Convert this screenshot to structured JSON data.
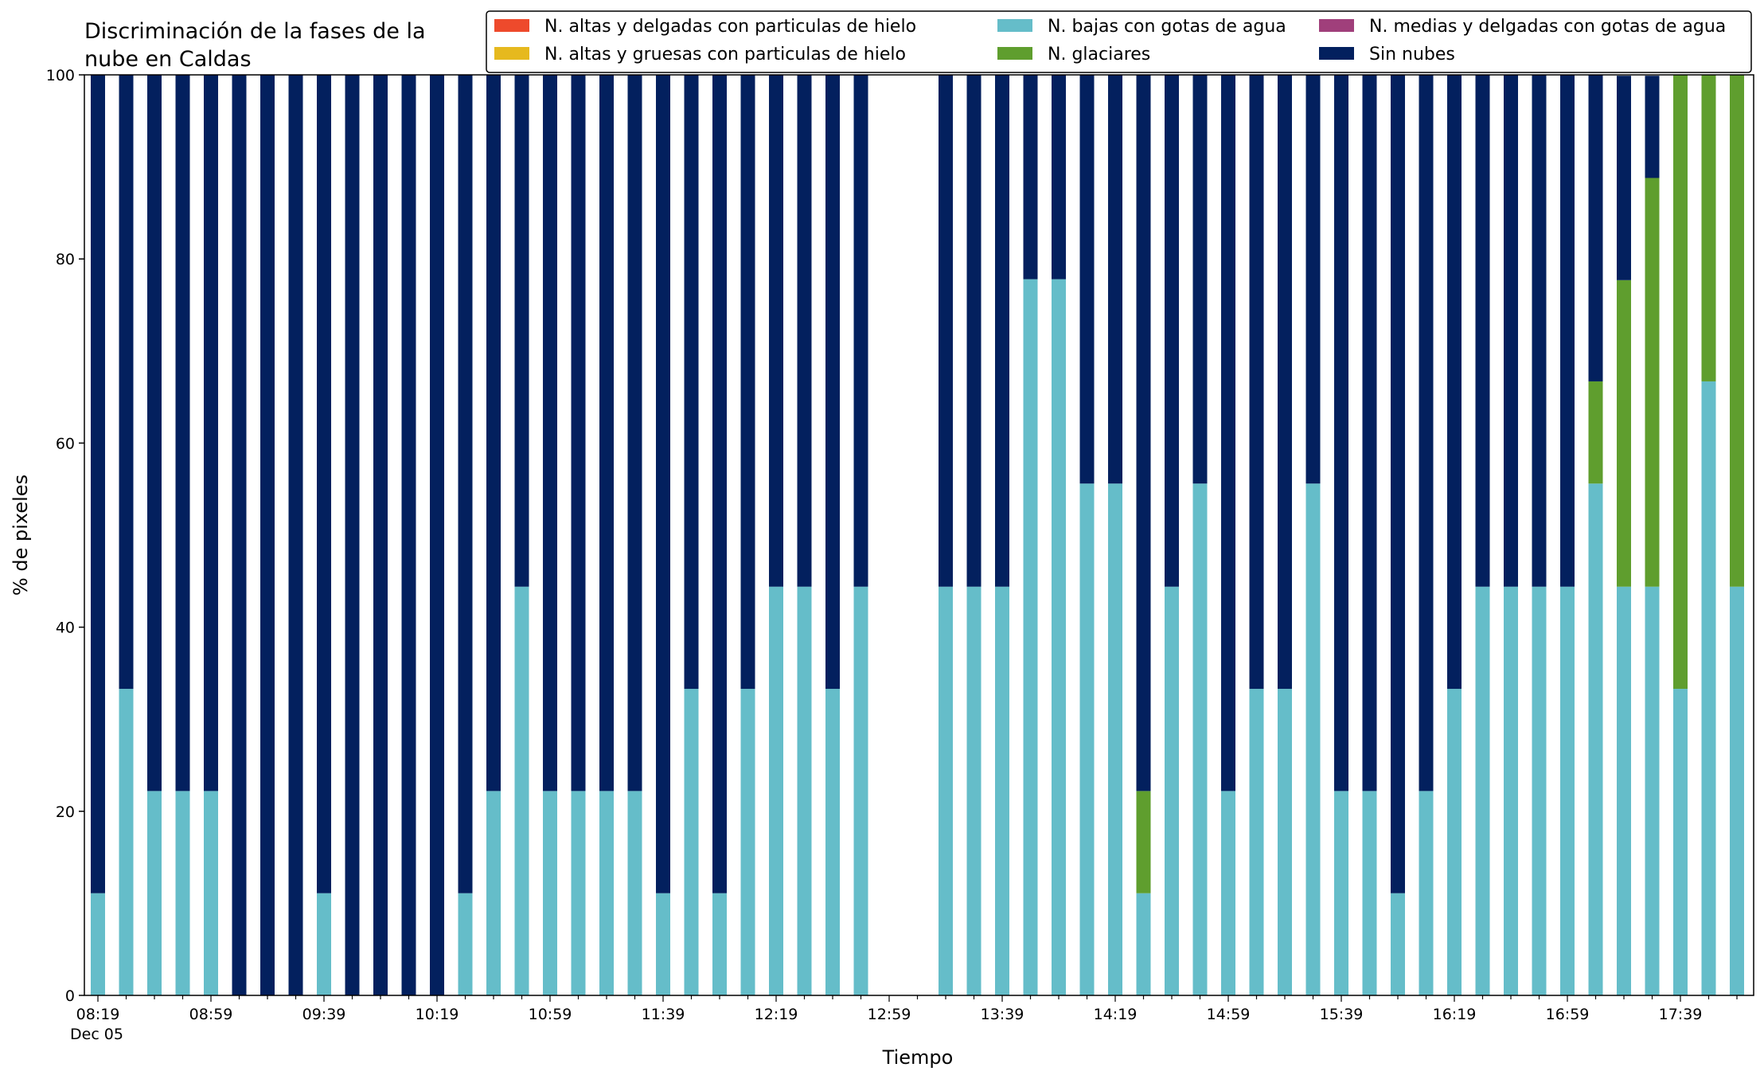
{
  "chart_data": {
    "type": "bar",
    "stacked": true,
    "title": "Discriminación de la fases de la nube en Caldas",
    "title_lines": [
      "Discriminación de la fases de la",
      "nube en Caldas"
    ],
    "xlabel": "Tiempo",
    "ylabel": "% de pixeles",
    "ylim": [
      0,
      100
    ],
    "yticks": [
      0,
      20,
      40,
      60,
      80,
      100
    ],
    "date_label": "Dec 05",
    "grid": false,
    "legend_position": "top-right",
    "categories": [
      "08:19",
      "08:29",
      "08:39",
      "08:49",
      "08:59",
      "09:09",
      "09:19",
      "09:29",
      "09:39",
      "09:49",
      "09:59",
      "10:09",
      "10:19",
      "10:29",
      "10:39",
      "10:49",
      "10:59",
      "11:09",
      "11:19",
      "11:29",
      "11:39",
      "11:49",
      "11:59",
      "12:09",
      "12:19",
      "12:29",
      "12:39",
      "12:49",
      "12:59",
      "13:09",
      "13:19",
      "13:29",
      "13:39",
      "13:49",
      "13:59",
      "14:09",
      "14:19",
      "14:29",
      "14:39",
      "14:49",
      "14:59",
      "15:09",
      "15:19",
      "15:29",
      "15:39",
      "15:49",
      "15:59",
      "16:09",
      "16:19",
      "16:29",
      "16:39",
      "16:49",
      "16:59",
      "17:09",
      "17:19",
      "17:29",
      "17:39",
      "17:49",
      "17:59"
    ],
    "x_tick_labels": [
      "08:19",
      "08:59",
      "09:39",
      "10:19",
      "10:59",
      "11:39",
      "12:19",
      "12:59",
      "13:39",
      "14:19",
      "14:59",
      "15:39",
      "16:19",
      "16:59",
      "17:39"
    ],
    "legend": [
      {
        "name": "N. altas y delgadas con particulas de hielo",
        "color": "#ee4a2c"
      },
      {
        "name": "N. altas y gruesas con particulas de hielo",
        "color": "#e6b91e"
      },
      {
        "name": "N. bajas con gotas de agua",
        "color": "#65bdc9"
      },
      {
        "name": "N. glaciares",
        "color": "#5f9e2e"
      },
      {
        "name": "N. medias y delgadas con gotas de agua",
        "color": "#a03f7b"
      },
      {
        "name": "Sin nubes",
        "color": "#03205e"
      }
    ],
    "series": [
      {
        "name": "N. altas y delgadas con particulas de hielo",
        "color": "#ee4a2c",
        "values": [
          0,
          0,
          0,
          0,
          0,
          0,
          0,
          0,
          0,
          0,
          0,
          0,
          0,
          0,
          0,
          0,
          0,
          0,
          0,
          0,
          0,
          0,
          0,
          0,
          0,
          0,
          0,
          0,
          0,
          0,
          0,
          0,
          0,
          0,
          0,
          0,
          0,
          0,
          0,
          0,
          0,
          0,
          0,
          0,
          0,
          0,
          0,
          0,
          0,
          0,
          0,
          0,
          0,
          0,
          0,
          0,
          0,
          0,
          0
        ]
      },
      {
        "name": "N. altas y gruesas con particulas de hielo",
        "color": "#e6b91e",
        "values": [
          0,
          0,
          0,
          0,
          0,
          0,
          0,
          0,
          0,
          0,
          0,
          0,
          0,
          0,
          0,
          0,
          0,
          0,
          0,
          0,
          0,
          0,
          0,
          0,
          0,
          0,
          0,
          0,
          0,
          0,
          0,
          0,
          0,
          0,
          0,
          0,
          0,
          0,
          0,
          0,
          0,
          0,
          0,
          0,
          0,
          0,
          0,
          0,
          0,
          0,
          0,
          0,
          0,
          0,
          0,
          0,
          0,
          0,
          0
        ]
      },
      {
        "name": "N. medias y delgadas con gotas de agua",
        "color": "#a03f7b",
        "values": [
          0,
          0,
          0,
          0,
          0,
          0,
          0,
          0,
          0,
          0,
          0,
          0,
          0,
          0,
          0,
          0,
          0,
          0,
          0,
          0,
          0,
          0,
          0,
          0,
          0,
          0,
          0,
          0,
          0,
          0,
          0,
          0,
          0,
          0,
          0,
          0,
          0,
          0,
          0,
          0,
          0,
          0,
          0,
          0,
          0,
          0,
          0,
          0,
          0,
          0,
          0,
          0,
          0,
          0,
          0,
          0,
          0,
          0,
          0
        ]
      },
      {
        "name": "N. bajas con gotas de agua",
        "color": "#65bdc9",
        "values": [
          11.1,
          33.3,
          22.2,
          22.2,
          22.2,
          0,
          0,
          0,
          11.1,
          0,
          0,
          0,
          0,
          11.1,
          22.2,
          44.4,
          22.2,
          22.2,
          22.2,
          22.2,
          11.1,
          33.3,
          11.1,
          33.3,
          44.4,
          44.4,
          33.3,
          44.4,
          0,
          0,
          44.4,
          44.4,
          44.4,
          77.8,
          77.8,
          55.6,
          55.6,
          11.1,
          44.4,
          55.6,
          22.2,
          33.3,
          33.3,
          55.6,
          22.2,
          22.2,
          11.1,
          22.2,
          33.3,
          44.4,
          44.4,
          44.4,
          44.4,
          55.6,
          44.4,
          44.4,
          33.3,
          66.7,
          44.4
        ]
      },
      {
        "name": "N. glaciares",
        "color": "#5f9e2e",
        "values": [
          0,
          0,
          0,
          0,
          0,
          0,
          0,
          0,
          0,
          0,
          0,
          0,
          0,
          0,
          0,
          0,
          0,
          0,
          0,
          0,
          0,
          0,
          0,
          0,
          0,
          0,
          0,
          0,
          0,
          0,
          0,
          0,
          0,
          0,
          0,
          0,
          0,
          11.1,
          0,
          0,
          0,
          0,
          0,
          0,
          0,
          0,
          0,
          0,
          0,
          0,
          0,
          0,
          0,
          11.1,
          33.3,
          44.4,
          66.7,
          33.3,
          55.6
        ]
      },
      {
        "name": "Sin nubes",
        "color": "#03205e",
        "values": [
          88.9,
          66.7,
          77.8,
          77.8,
          77.8,
          100,
          100,
          100,
          88.9,
          100,
          100,
          100,
          100,
          88.9,
          77.8,
          55.6,
          77.8,
          77.8,
          77.8,
          77.8,
          88.9,
          66.7,
          88.9,
          66.7,
          55.6,
          55.6,
          66.7,
          55.6,
          0,
          0,
          55.6,
          55.6,
          55.6,
          22.2,
          22.2,
          44.4,
          44.4,
          77.8,
          55.6,
          44.4,
          77.8,
          66.7,
          66.7,
          44.4,
          77.8,
          77.8,
          88.9,
          77.8,
          66.7,
          55.6,
          55.6,
          55.6,
          55.6,
          33.3,
          22.2,
          11.1,
          0,
          0,
          0
        ]
      }
    ]
  }
}
